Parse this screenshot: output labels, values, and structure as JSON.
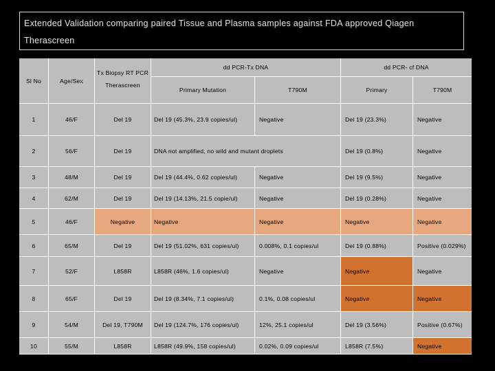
{
  "title": "Extended Validation comparing paired Tissue and Plasma samples against FDA approved Qiagen Therascreen",
  "headers": {
    "sl_no": "Sl No",
    "age_sex": "Age/Sex",
    "tx_biopsy": "Tx Biopsy RT PCR",
    "therascreen": "Therascreen",
    "ddpcr_tx": "dd PCR-Tx DNA",
    "ddpcr_cf": "dd PCR- cf DNA",
    "primary_mutation": "Primary Mutation",
    "t790m": "T790M",
    "primary": "Primary",
    "t790m_2": "T790M"
  },
  "rows": [
    {
      "sl": "1",
      "age": "46/F",
      "tx": "Del 19",
      "ddtx_primary": "Del 19 (45.3%, 23.9 copies/ul)",
      "ddtx_t790m": "Negative",
      "cf_primary": "Del 19 (23.3%)",
      "cf_t790m": "Negative"
    },
    {
      "sl": "2",
      "age": "56/F",
      "tx": "Del 19",
      "ddtx_merged": "DNA not amplified, no wild and mutant droplets",
      "cf_primary": "Del 19 (0.8%)",
      "cf_t790m": "Negative"
    },
    {
      "sl": "3",
      "age": "48/M",
      "tx": "Del 19",
      "ddtx_primary": "Del 19 (44.4%, 0.62 copies/ul)",
      "ddtx_t790m": "Negative",
      "cf_primary": "Del 19 (9.5%)",
      "cf_t790m": "Negative"
    },
    {
      "sl": "4",
      "age": "62/M",
      "tx": "Del 19",
      "ddtx_primary": "Del 19 (14.13%, 21.5 copie/ul)",
      "ddtx_t790m": "Negative",
      "cf_primary": "Del 19 (0.28%)",
      "cf_t790m": "Negative"
    },
    {
      "sl": "5",
      "age": "46/F",
      "tx": "Negative",
      "ddtx_primary": "Negative",
      "ddtx_t790m": "Negative",
      "cf_primary": "Negative",
      "cf_t790m": "Negative"
    },
    {
      "sl": "6",
      "age": "65/M",
      "tx": "Del 19",
      "ddtx_primary": "Del 19 (51.02%, 631 copies/ul)",
      "ddtx_t790m": "0.008%, 0.1 copies/ul",
      "cf_primary": "Del 19 (0.88%)",
      "cf_t790m": "Positive (0.029%)"
    },
    {
      "sl": "7",
      "age": "52/F",
      "tx": "L858R",
      "ddtx_primary": "L858R (46%, 1.6 copies/ul)",
      "ddtx_t790m": "Negative",
      "cf_primary": "Negative",
      "cf_t790m": "Negative"
    },
    {
      "sl": "8",
      "age": "65/F",
      "tx": "Del 19",
      "ddtx_primary": "Del 19 (8.34%, 7.1 copies/ul)",
      "ddtx_t790m": "0.1%, 0.08 copies/ul",
      "cf_primary": "Negative",
      "cf_t790m": "Negative"
    },
    {
      "sl": "9",
      "age": "54/M",
      "tx": "Del 19, T790M",
      "ddtx_primary": "Del 19 (124.7%, 176 copies/ul)",
      "ddtx_t790m": "12%, 25.1 copies/ul",
      "cf_primary": "Del 19 (3.56%)",
      "cf_t790m": "Positive (0.67%)"
    },
    {
      "sl": "10",
      "age": "55/M",
      "tx": "L858R",
      "ddtx_primary": "L858R (49.9%, 158 copies/ul)",
      "ddtx_t790m": "0.02%, 0.09 copies/ul",
      "cf_primary": "L858R (7.5%)",
      "cf_t790m": "Negative"
    }
  ],
  "colors": {
    "table_gray": "#bdbdbd",
    "peach_highlight": "#e8a87f",
    "orange_highlight": "#d2722f",
    "background": "#000000"
  }
}
